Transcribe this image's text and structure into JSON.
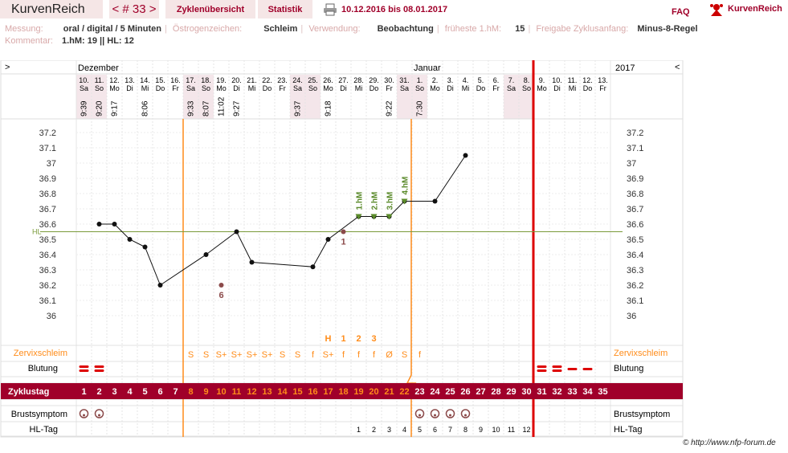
{
  "app": {
    "title": "KurvenReich",
    "cycle_nav": "< # 33 >",
    "tab_overview": "Zyklenübersicht",
    "tab_stats": "Statistik",
    "date_range": "10.12.2016 bis 08.01.2017",
    "faq": "FAQ",
    "logo": "KurvenReich"
  },
  "meta": {
    "messung_label": "Messung:",
    "messung": "oral / digital / 5 Minuten",
    "oestrogen_label": "Östrogenzeichen:",
    "oestrogen": "Schleim",
    "verwendung_label": "Verwendung:",
    "verwendung": "Beobachtung",
    "fhm_label": "früheste 1.hM:",
    "fhm": "15",
    "freigabe_label": "Freigabe Zyklusanfang:",
    "freigabe": "Minus-8-Regel",
    "kommentar_label": "Kommentar:",
    "kommentar": "1.hM: 19 || HL: 12"
  },
  "chart": {
    "left_arrow": ">",
    "right_arrow": "<",
    "month_dez": "Dezember",
    "month_jan": "Januar",
    "year": "2017",
    "days": [
      {
        "d": "10.",
        "w": "Sa",
        "t": "9:39"
      },
      {
        "d": "11.",
        "w": "So",
        "t": "9:20"
      },
      {
        "d": "12.",
        "w": "Mo",
        "t": "9:17"
      },
      {
        "d": "13.",
        "w": "Di",
        "t": ""
      },
      {
        "d": "14.",
        "w": "Mi",
        "t": "8:06"
      },
      {
        "d": "15.",
        "w": "Do",
        "t": ""
      },
      {
        "d": "16.",
        "w": "Fr",
        "t": ""
      },
      {
        "d": "17.",
        "w": "Sa",
        "t": "9:33"
      },
      {
        "d": "18.",
        "w": "So",
        "t": "8:07"
      },
      {
        "d": "19.",
        "w": "Mo",
        "t": "11:02"
      },
      {
        "d": "20.",
        "w": "Di",
        "t": "9:27"
      },
      {
        "d": "21.",
        "w": "Mi",
        "t": ""
      },
      {
        "d": "22.",
        "w": "Do",
        "t": ""
      },
      {
        "d": "23.",
        "w": "Fr",
        "t": ""
      },
      {
        "d": "24.",
        "w": "Sa",
        "t": "9:37"
      },
      {
        "d": "25.",
        "w": "So",
        "t": ""
      },
      {
        "d": "26.",
        "w": "Mo",
        "t": "9:18"
      },
      {
        "d": "27.",
        "w": "Di",
        "t": ""
      },
      {
        "d": "28.",
        "w": "Mi",
        "t": ""
      },
      {
        "d": "29.",
        "w": "Do",
        "t": ""
      },
      {
        "d": "30.",
        "w": "Fr",
        "t": "9:22"
      },
      {
        "d": "31.",
        "w": "Sa",
        "t": ""
      },
      {
        "d": "1.",
        "w": "So",
        "t": "7:30"
      },
      {
        "d": "2.",
        "w": "Mo",
        "t": ""
      },
      {
        "d": "3.",
        "w": "Di",
        "t": ""
      },
      {
        "d": "4.",
        "w": "Mi",
        "t": ""
      },
      {
        "d": "5.",
        "w": "Do",
        "t": ""
      },
      {
        "d": "6.",
        "w": "Fr",
        "t": ""
      },
      {
        "d": "7.",
        "w": "Sa",
        "t": ""
      },
      {
        "d": "8.",
        "w": "So",
        "t": ""
      },
      {
        "d": "9.",
        "w": "Mo",
        "t": ""
      },
      {
        "d": "10.",
        "w": "Di",
        "t": ""
      },
      {
        "d": "11.",
        "w": "Mi",
        "t": ""
      },
      {
        "d": "12.",
        "w": "Do",
        "t": ""
      },
      {
        "d": "13.",
        "w": "Fr",
        "t": ""
      }
    ],
    "temp_ticks": [
      "37.2",
      "37.1",
      "37",
      "36.9",
      "36.8",
      "36.7",
      "36.6",
      "36.5",
      "36.4",
      "36.3",
      "36.2",
      "36.1",
      "36"
    ],
    "hl_label": "HL",
    "rows": {
      "cervix": "Zervixschleim",
      "blutung": "Blutung",
      "zyklustag": "Zyklustag",
      "brust": "Brustsymptom",
      "hltag": "HL-Tag"
    }
  },
  "chart_data": {
    "type": "line",
    "x": [
      "10.12.",
      "11.12.",
      "12.12.",
      "13.12.",
      "14.12.",
      "15.12.",
      "16.12.",
      "17.12.",
      "18.12.",
      "19.12.",
      "20.12.",
      "21.12.",
      "22.12.",
      "23.12.",
      "24.12.",
      "25.12.",
      "26.12.",
      "27.12.",
      "28.12.",
      "29.12.",
      "30.12.",
      "31.12.",
      "01.01.",
      "02.01.",
      "03.01.",
      "04.01."
    ],
    "series": [
      {
        "values": [
          null,
          36.6,
          36.6,
          36.5,
          36.45,
          36.2,
          null,
          null,
          36.4,
          36.2,
          36.55,
          36.35,
          null,
          null,
          null,
          36.32,
          36.5,
          36.55,
          36.65,
          36.65,
          36.65,
          36.75,
          null,
          36.75,
          null,
          37.05
        ]
      }
    ],
    "ylim": [
      36.0,
      37.2
    ],
    "coverline": 36.55,
    "excluded_points": [
      {
        "index": 9,
        "label": "6"
      },
      {
        "index": 17,
        "label": "1"
      }
    ],
    "hm_markers": [
      "1.hM",
      "2.hM",
      "3.hM",
      "4.hM"
    ],
    "cervix_peak_labels": [
      "H",
      "1",
      "2",
      "3"
    ],
    "cervix_symbols": [
      "",
      "",
      "",
      "",
      "",
      "",
      "",
      "S",
      "S",
      "S+",
      "S+",
      "S+",
      "S+",
      "S",
      "S",
      "f",
      "S+",
      "f",
      "f",
      "f",
      "Ø",
      "S",
      "f",
      "",
      "",
      "",
      "",
      "",
      "",
      "",
      "",
      "",
      "",
      "",
      ""
    ],
    "bleeding": [
      "heavy",
      "heavy",
      "",
      "",
      "",
      "",
      "",
      "",
      "",
      "",
      "",
      "",
      "",
      "",
      "",
      "",
      "",
      "",
      "",
      "",
      "",
      "",
      "",
      "",
      "",
      "",
      "",
      "",
      "",
      "",
      "heavy",
      "heavy",
      "light",
      "light",
      ""
    ],
    "cycle_days": [
      "1",
      "2",
      "3",
      "4",
      "5",
      "6",
      "7",
      "8",
      "9",
      "10",
      "11",
      "12",
      "13",
      "14",
      "15",
      "16",
      "17",
      "18",
      "19",
      "20",
      "21",
      "22",
      "23",
      "24",
      "25",
      "26",
      "27",
      "28",
      "29",
      "30",
      "31",
      "32",
      "33",
      "34",
      "35"
    ],
    "breast": [
      "y",
      "y",
      "",
      "",
      "",
      "",
      "",
      "",
      "",
      "",
      "",
      "",
      "",
      "",
      "",
      "",
      "",
      "",
      "",
      "",
      "",
      "",
      "y",
      "y",
      "y",
      "y",
      "",
      "",
      "",
      "",
      "",
      "",
      "",
      "",
      ""
    ],
    "hl_days": [
      "",
      "",
      "",
      "",
      "",
      "",
      "",
      "",
      "",
      "",
      "",
      "",
      "",
      "",
      "",
      "",
      "",
      "",
      "1",
      "2",
      "3",
      "4",
      "5",
      "6",
      "7",
      "8",
      "9",
      "10",
      "11",
      "12",
      "",
      "",
      "",
      "",
      ""
    ]
  }
}
